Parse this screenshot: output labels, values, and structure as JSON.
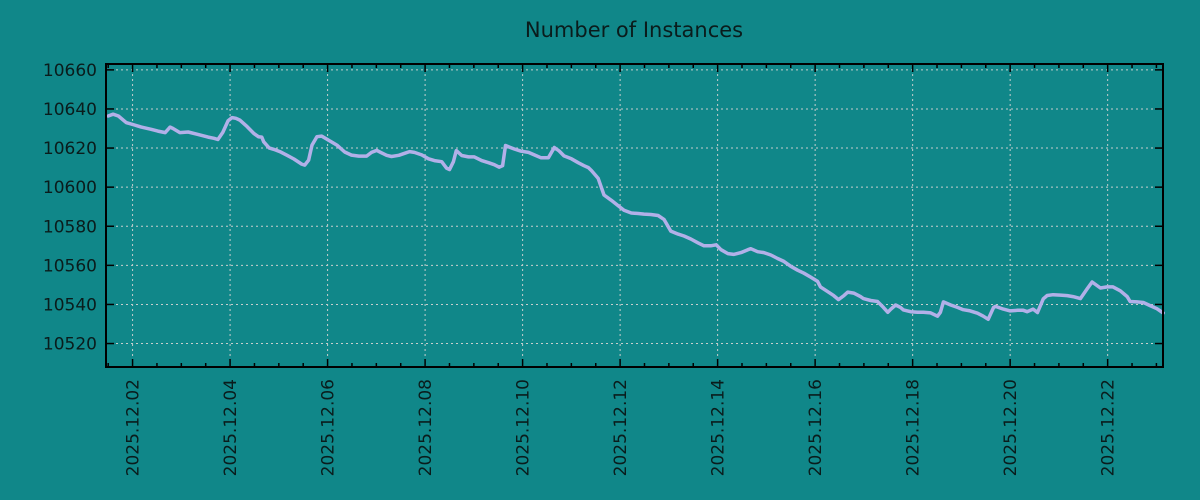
{
  "page": {
    "background": "#108789"
  },
  "chart_data": {
    "type": "line",
    "title": "Number of Instances",
    "legend": "none",
    "grid": true,
    "xlabel": "",
    "ylabel": "",
    "x_axis": {
      "unit": "date (day of 2025.12)",
      "xlim_days": [
        1.455,
        23.135
      ],
      "tick_days": [
        2,
        4,
        6,
        8,
        10,
        12,
        14,
        16,
        18,
        20,
        22
      ],
      "tick_labels": [
        "2025.12.02",
        "2025.12.04",
        "2025.12.06",
        "2025.12.08",
        "2025.12.10",
        "2025.12.12",
        "2025.12.14",
        "2025.12.16",
        "2025.12.18",
        "2025.12.20",
        "2025.12.22"
      ],
      "minor_tick_step_days": 0.5
    },
    "y_axis": {
      "ylim": [
        10508,
        10663
      ],
      "ticks": [
        10520,
        10540,
        10560,
        10580,
        10600,
        10620,
        10640,
        10660
      ],
      "tick_labels": [
        "10520",
        "10540",
        "10560",
        "10580",
        "10600",
        "10620",
        "10640",
        "10660"
      ]
    },
    "colors": {
      "background": "#108789",
      "line": "#b2b0e8",
      "grid": "#c6cecd",
      "axis": "#000000",
      "text": "#0a1c1c"
    },
    "series": [
      {
        "name": "instances",
        "color": "#b2b0e8",
        "points": [
          [
            1.5,
            10636.4
          ],
          [
            1.6,
            10637.3
          ],
          [
            1.71,
            10636.4
          ],
          [
            1.87,
            10633.0
          ],
          [
            2.04,
            10631.8
          ],
          [
            2.18,
            10630.7
          ],
          [
            2.38,
            10629.6
          ],
          [
            2.52,
            10628.7
          ],
          [
            2.67,
            10627.9
          ],
          [
            2.77,
            10630.7
          ],
          [
            2.83,
            10630.0
          ],
          [
            2.97,
            10627.9
          ],
          [
            3.14,
            10628.2
          ],
          [
            3.34,
            10627.0
          ],
          [
            3.55,
            10625.6
          ],
          [
            3.67,
            10625.0
          ],
          [
            3.75,
            10624.4
          ],
          [
            3.85,
            10628.0
          ],
          [
            3.96,
            10634.0
          ],
          [
            4.04,
            10635.6
          ],
          [
            4.12,
            10635.2
          ],
          [
            4.2,
            10634.3
          ],
          [
            4.35,
            10631.0
          ],
          [
            4.49,
            10627.4
          ],
          [
            4.58,
            10625.8
          ],
          [
            4.65,
            10625.6
          ],
          [
            4.69,
            10623.2
          ],
          [
            4.8,
            10620.1
          ],
          [
            4.9,
            10619.3
          ],
          [
            5.02,
            10618.2
          ],
          [
            5.16,
            10616.4
          ],
          [
            5.31,
            10614.4
          ],
          [
            5.47,
            10611.8
          ],
          [
            5.53,
            10611.3
          ],
          [
            5.61,
            10613.8
          ],
          [
            5.68,
            10621.5
          ],
          [
            5.78,
            10625.8
          ],
          [
            5.88,
            10626.1
          ],
          [
            6.04,
            10623.7
          ],
          [
            6.19,
            10621.5
          ],
          [
            6.35,
            10618.0
          ],
          [
            6.49,
            10616.4
          ],
          [
            6.64,
            10615.9
          ],
          [
            6.8,
            10615.9
          ],
          [
            6.9,
            10617.8
          ],
          [
            7.01,
            10618.8
          ],
          [
            7.11,
            10617.5
          ],
          [
            7.21,
            10616.3
          ],
          [
            7.31,
            10615.7
          ],
          [
            7.46,
            10616.3
          ],
          [
            7.58,
            10617.3
          ],
          [
            7.68,
            10618.2
          ],
          [
            7.78,
            10617.8
          ],
          [
            7.93,
            10616.5
          ],
          [
            8.07,
            10614.5
          ],
          [
            8.19,
            10613.6
          ],
          [
            8.34,
            10613.0
          ],
          [
            8.44,
            10609.7
          ],
          [
            8.5,
            10609.0
          ],
          [
            8.58,
            10613.0
          ],
          [
            8.64,
            10618.7
          ],
          [
            8.75,
            10616.2
          ],
          [
            8.89,
            10615.5
          ],
          [
            9.01,
            10615.5
          ],
          [
            9.16,
            10613.6
          ],
          [
            9.3,
            10612.5
          ],
          [
            9.42,
            10611.5
          ],
          [
            9.52,
            10610.2
          ],
          [
            9.59,
            10611.0
          ],
          [
            9.65,
            10621.3
          ],
          [
            9.73,
            10620.5
          ],
          [
            9.83,
            10619.5
          ],
          [
            9.97,
            10618.4
          ],
          [
            10.12,
            10617.8
          ],
          [
            10.24,
            10616.5
          ],
          [
            10.38,
            10615.0
          ],
          [
            10.53,
            10615.0
          ],
          [
            10.65,
            10620.3
          ],
          [
            10.75,
            10618.5
          ],
          [
            10.85,
            10616.0
          ],
          [
            11.0,
            10614.5
          ],
          [
            11.14,
            10612.5
          ],
          [
            11.26,
            10611.0
          ],
          [
            11.35,
            10610.0
          ],
          [
            11.41,
            10608.5
          ],
          [
            11.55,
            10604.5
          ],
          [
            11.67,
            10596.0
          ],
          [
            11.82,
            10593.3
          ],
          [
            11.96,
            10590.5
          ],
          [
            12.08,
            10588.2
          ],
          [
            12.23,
            10586.8
          ],
          [
            12.37,
            10586.5
          ],
          [
            12.49,
            10586.2
          ],
          [
            12.63,
            10586.0
          ],
          [
            12.78,
            10585.5
          ],
          [
            12.9,
            10583.5
          ],
          [
            13.04,
            10577.5
          ],
          [
            13.19,
            10576.0
          ],
          [
            13.31,
            10575.0
          ],
          [
            13.45,
            10573.5
          ],
          [
            13.6,
            10571.5
          ],
          [
            13.72,
            10570.0
          ],
          [
            13.86,
            10570.0
          ],
          [
            13.97,
            10570.5
          ],
          [
            14.07,
            10568.0
          ],
          [
            14.21,
            10566.0
          ],
          [
            14.33,
            10565.6
          ],
          [
            14.48,
            10566.5
          ],
          [
            14.62,
            10568.0
          ],
          [
            14.68,
            10568.5
          ],
          [
            14.82,
            10567.0
          ],
          [
            14.95,
            10566.5
          ],
          [
            15.09,
            10565.3
          ],
          [
            15.23,
            10563.5
          ],
          [
            15.36,
            10562.0
          ],
          [
            15.5,
            10559.5
          ],
          [
            15.64,
            10557.5
          ],
          [
            15.77,
            10556.0
          ],
          [
            15.91,
            10554.0
          ],
          [
            16.05,
            10551.8
          ],
          [
            16.11,
            10549.0
          ],
          [
            16.26,
            10546.5
          ],
          [
            16.38,
            10544.5
          ],
          [
            16.48,
            10542.5
          ],
          [
            16.59,
            10544.5
          ],
          [
            16.67,
            10546.3
          ],
          [
            16.79,
            10545.8
          ],
          [
            16.93,
            10544.0
          ],
          [
            16.99,
            10543.0
          ],
          [
            17.14,
            10542.0
          ],
          [
            17.28,
            10541.5
          ],
          [
            17.4,
            10538.5
          ],
          [
            17.49,
            10536.0
          ],
          [
            17.55,
            10537.5
          ],
          [
            17.65,
            10539.7
          ],
          [
            17.75,
            10538.5
          ],
          [
            17.81,
            10537.2
          ],
          [
            17.96,
            10536.3
          ],
          [
            18.1,
            10536.0
          ],
          [
            18.22,
            10536.0
          ],
          [
            18.37,
            10535.7
          ],
          [
            18.51,
            10534.0
          ],
          [
            18.57,
            10536.0
          ],
          [
            18.63,
            10541.3
          ],
          [
            18.78,
            10539.7
          ],
          [
            18.92,
            10538.5
          ],
          [
            19.04,
            10537.3
          ],
          [
            19.18,
            10536.7
          ],
          [
            19.33,
            10535.5
          ],
          [
            19.45,
            10534.0
          ],
          [
            19.55,
            10532.4
          ],
          [
            19.66,
            10538.5
          ],
          [
            19.7,
            10539.0
          ],
          [
            19.86,
            10537.6
          ],
          [
            20.0,
            10536.7
          ],
          [
            20.15,
            10537.0
          ],
          [
            20.27,
            10537.0
          ],
          [
            20.35,
            10536.3
          ],
          [
            20.47,
            10537.6
          ],
          [
            20.56,
            10535.9
          ],
          [
            20.68,
            10542.9
          ],
          [
            20.76,
            10544.6
          ],
          [
            20.88,
            10545.0
          ],
          [
            21.03,
            10544.8
          ],
          [
            21.17,
            10544.5
          ],
          [
            21.29,
            10544.0
          ],
          [
            21.44,
            10543.0
          ],
          [
            21.58,
            10548.0
          ],
          [
            21.68,
            10551.5
          ],
          [
            21.85,
            10548.4
          ],
          [
            21.99,
            10549.0
          ],
          [
            22.11,
            10549.0
          ],
          [
            22.26,
            10547.0
          ],
          [
            22.4,
            10544.0
          ],
          [
            22.46,
            10541.5
          ],
          [
            22.6,
            10541.3
          ],
          [
            22.73,
            10541.0
          ],
          [
            22.87,
            10539.4
          ],
          [
            23.01,
            10537.8
          ],
          [
            23.14,
            10535.6
          ]
        ]
      }
    ]
  }
}
